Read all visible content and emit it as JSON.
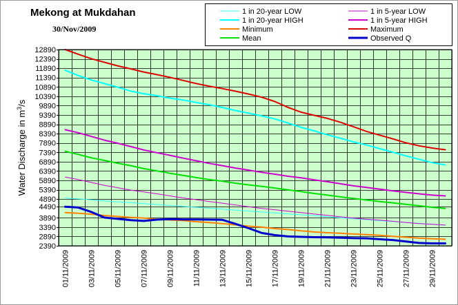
{
  "header": {
    "title": "Mekong at Mukdahan",
    "date": "30/Nov/2009"
  },
  "chart_data": {
    "type": "line",
    "title": "Mekong at Mukdahan",
    "subtitle": "30/Nov/2009",
    "ylabel_prefix": "Water Discharge in m",
    "ylabel_sup": "3",
    "ylabel_suffix": "/s",
    "ylim": [
      2390,
      12890
    ],
    "yticks": [
      2390,
      2890,
      3390,
      3890,
      4490,
      4890,
      5390,
      5890,
      6390,
      6890,
      7390,
      7890,
      8390,
      8890,
      9390,
      9890,
      10390,
      10890,
      11390,
      11890,
      12390,
      12890
    ],
    "x": [
      "01/11/2009",
      "02/11/2009",
      "03/11/2009",
      "04/11/2009",
      "05/11/2009",
      "06/11/2009",
      "07/11/2009",
      "08/11/2009",
      "09/11/2009",
      "10/11/2009",
      "11/11/2009",
      "12/11/2009",
      "13/11/2009",
      "14/11/2009",
      "15/11/2009",
      "16/11/2009",
      "17/11/2009",
      "18/11/2009",
      "19/11/2009",
      "20/11/2009",
      "21/11/2009",
      "22/11/2009",
      "23/11/2009",
      "24/11/2009",
      "25/11/2009",
      "26/11/2009",
      "27/11/2009",
      "28/11/2009",
      "29/11/2009",
      "30/11/2009"
    ],
    "xtick_labels": [
      "01/11/2009",
      "03/11/2009",
      "05/11/2009",
      "07/11/2009",
      "09/11/2009",
      "11/11/2009",
      "13/11/2009",
      "15/11/2009",
      "17/11/2009",
      "19/11/2009",
      "21/11/2009",
      "23/11/2009",
      "25/11/2009",
      "27/11/2009",
      "29/11/2009"
    ],
    "grid": true,
    "background": "#ccffcc",
    "legend_position": "top-right",
    "series": [
      {
        "name": "1 in 20-year LOW",
        "color": "#33ffff",
        "width": 1,
        "values": [
          4940,
          4900,
          4850,
          4790,
          4740,
          4700,
          4650,
          4600,
          4550,
          4500,
          4450,
          4400,
          4350,
          4300,
          4250,
          4200,
          4150,
          4100,
          4050,
          4000,
          3950,
          3890,
          3840,
          3790,
          3740,
          3690,
          3640,
          3590,
          3540,
          3490
        ]
      },
      {
        "name": "1 in 20-year HIGH",
        "color": "#00ffff",
        "width": 2,
        "values": [
          11780,
          11500,
          11260,
          11070,
          10880,
          10670,
          10530,
          10420,
          10290,
          10190,
          10060,
          9940,
          9790,
          9630,
          9490,
          9340,
          9180,
          8960,
          8730,
          8540,
          8330,
          8150,
          7950,
          7780,
          7590,
          7400,
          7200,
          7020,
          6840,
          6720
        ]
      },
      {
        "name": "Minimum",
        "color": "#ff7f00",
        "width": 2,
        "values": [
          4170,
          4130,
          4080,
          4010,
          3960,
          3910,
          3870,
          3810,
          3770,
          3740,
          3680,
          3630,
          3580,
          3510,
          3440,
          3390,
          3310,
          3260,
          3190,
          3130,
          3090,
          3060,
          3020,
          2990,
          2950,
          2900,
          2850,
          2800,
          2770,
          2740
        ]
      },
      {
        "name": "Mean",
        "color": "#00e000",
        "width": 2,
        "values": [
          7450,
          7280,
          7100,
          6960,
          6810,
          6680,
          6520,
          6400,
          6270,
          6160,
          6040,
          5930,
          5850,
          5740,
          5650,
          5570,
          5480,
          5380,
          5290,
          5190,
          5100,
          5010,
          4920,
          4840,
          4760,
          4690,
          4610,
          4530,
          4450,
          4390
        ]
      },
      {
        "name": "1 in 5-year LOW",
        "color": "#cc00cc",
        "width": 1,
        "values": [
          6070,
          5930,
          5780,
          5620,
          5500,
          5370,
          5270,
          5170,
          5060,
          4950,
          4860,
          4760,
          4670,
          4570,
          4480,
          4390,
          4320,
          4240,
          4170,
          4090,
          4020,
          3940,
          3870,
          3810,
          3760,
          3700,
          3640,
          3580,
          3540,
          3500
        ]
      },
      {
        "name": "1 in 5-year HIGH",
        "color": "#cc00cc",
        "width": 2,
        "values": [
          8600,
          8440,
          8240,
          8040,
          7880,
          7700,
          7520,
          7370,
          7230,
          7080,
          6940,
          6800,
          6680,
          6550,
          6440,
          6320,
          6220,
          6110,
          6030,
          5920,
          5820,
          5710,
          5600,
          5510,
          5420,
          5330,
          5250,
          5170,
          5100,
          5060
        ]
      },
      {
        "name": "Maximum",
        "color": "#dd0000",
        "width": 2,
        "values": [
          12890,
          12640,
          12400,
          12210,
          12020,
          11860,
          11690,
          11550,
          11400,
          11240,
          11070,
          10930,
          10800,
          10660,
          10510,
          10340,
          10110,
          9800,
          9540,
          9370,
          9210,
          9000,
          8760,
          8510,
          8310,
          8110,
          7900,
          7740,
          7620,
          7530
        ]
      },
      {
        "name": "Observed Q",
        "color": "#0000cc",
        "width": 3,
        "values": [
          4480,
          4440,
          4200,
          3900,
          3830,
          3760,
          3720,
          3790,
          3820,
          3800,
          3800,
          3790,
          3780,
          3560,
          3330,
          3080,
          2960,
          2890,
          2870,
          2850,
          2840,
          2820,
          2800,
          2790,
          2740,
          2700,
          2620,
          2540,
          2520,
          2520
        ]
      }
    ]
  }
}
